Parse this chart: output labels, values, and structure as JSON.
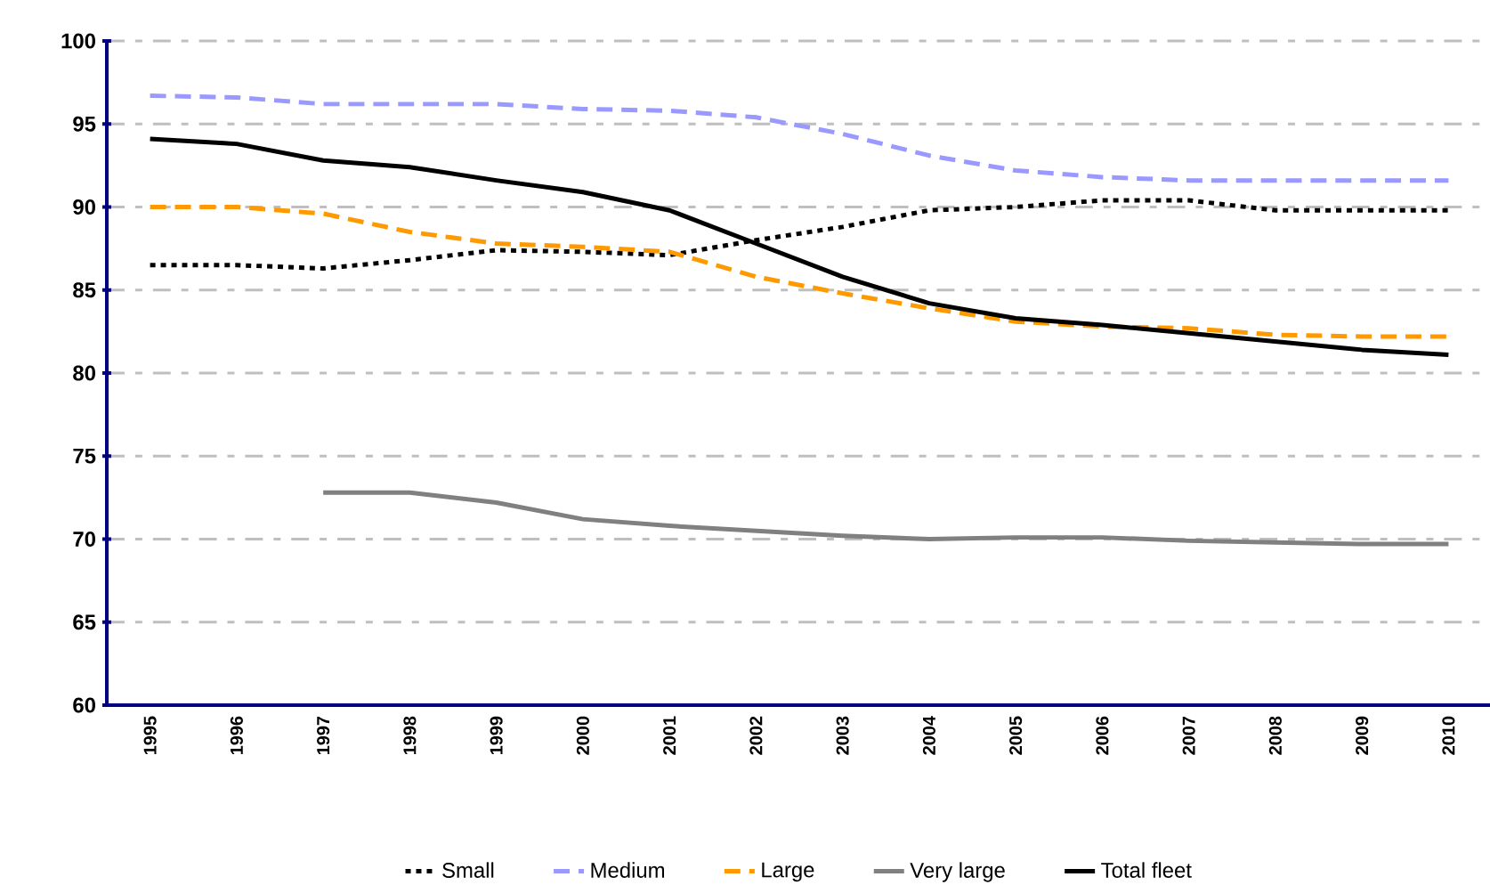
{
  "chart_data": {
    "type": "line",
    "categories": [
      "1995",
      "1996",
      "1997",
      "1998",
      "1999",
      "2000",
      "2001",
      "2002",
      "2003",
      "2004",
      "2005",
      "2006",
      "2007",
      "2008",
      "2009",
      "2010"
    ],
    "series": [
      {
        "name": "Small",
        "color": "#000000",
        "line_style": "dotted",
        "values": [
          86.5,
          86.5,
          86.3,
          86.8,
          87.4,
          87.3,
          87.1,
          88.0,
          88.8,
          89.8,
          90.0,
          90.4,
          90.4,
          89.8,
          89.8,
          89.8
        ]
      },
      {
        "name": "Medium",
        "color": "#9999ff",
        "line_style": "dashed",
        "values": [
          96.7,
          96.6,
          96.2,
          96.2,
          96.2,
          95.9,
          95.8,
          95.4,
          94.4,
          93.1,
          92.2,
          91.8,
          91.6,
          91.6,
          91.6,
          91.6
        ]
      },
      {
        "name": "Large",
        "color": "#ff9900",
        "line_style": "dashed",
        "values": [
          90.0,
          90.0,
          89.6,
          88.5,
          87.8,
          87.6,
          87.3,
          85.8,
          84.8,
          83.9,
          83.1,
          82.8,
          82.7,
          82.3,
          82.2,
          82.2
        ]
      },
      {
        "name": "Very large",
        "color": "#808080",
        "line_style": "solid",
        "values": [
          null,
          null,
          72.8,
          72.8,
          72.2,
          71.2,
          70.8,
          70.5,
          70.2,
          70.0,
          70.1,
          70.1,
          69.9,
          69.8,
          69.7,
          69.7
        ]
      },
      {
        "name": "Total fleet",
        "color": "#000000",
        "line_style": "solid",
        "values": [
          94.1,
          93.8,
          92.8,
          92.4,
          91.6,
          90.9,
          89.8,
          87.8,
          85.8,
          84.2,
          83.3,
          82.9,
          82.4,
          81.9,
          81.4,
          81.1
        ]
      }
    ],
    "ylim": [
      60,
      100
    ],
    "yticks": [
      60,
      65,
      70,
      75,
      80,
      85,
      90,
      95,
      100
    ],
    "grid": "y",
    "legend": "bottom",
    "marker": "none"
  }
}
